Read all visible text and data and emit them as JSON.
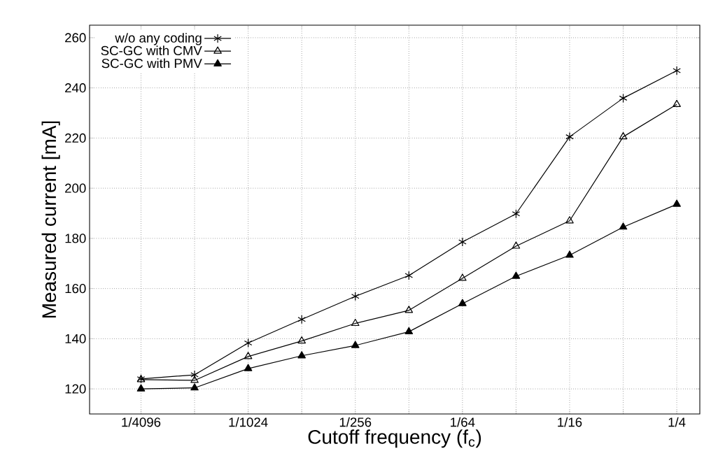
{
  "chart_data": {
    "type": "line",
    "xlabel": "Cutoff frequency  (f$_{c}$)",
    "ylabel": "Measured current  [mA]",
    "categories": [
      "1/4096",
      null,
      "1/1024",
      null,
      "1/256",
      null,
      "1/64",
      null,
      "1/16",
      null,
      "1/4"
    ],
    "series": [
      {
        "name": "w/o any coding",
        "color": "#000000",
        "marker": "cross",
        "values": [
          124.0,
          125.6,
          138.3,
          147.7,
          156.9,
          165.2,
          178.6,
          189.8,
          220.5,
          235.9,
          246.9
        ]
      },
      {
        "name": "SC-GC with CMV",
        "color": "#000000",
        "marker": "triangle",
        "values": [
          123.7,
          123.4,
          132.9,
          139.1,
          146.1,
          151.3,
          164.1,
          176.9,
          187.0,
          220.5,
          233.4
        ]
      },
      {
        "name": "SC-GC with PMV",
        "color": "#000000",
        "marker": "triangle",
        "values": [
          120.0,
          120.4,
          128.1,
          133.2,
          137.3,
          142.8,
          154.0,
          164.9,
          173.3,
          184.5,
          193.6
        ]
      }
    ],
    "ylim": [
      110,
      265
    ],
    "yticks": [
      120,
      140,
      160,
      180,
      200,
      220,
      240,
      260
    ],
    "grid": true,
    "legend": "top left",
    "line_style": "solid"
  }
}
